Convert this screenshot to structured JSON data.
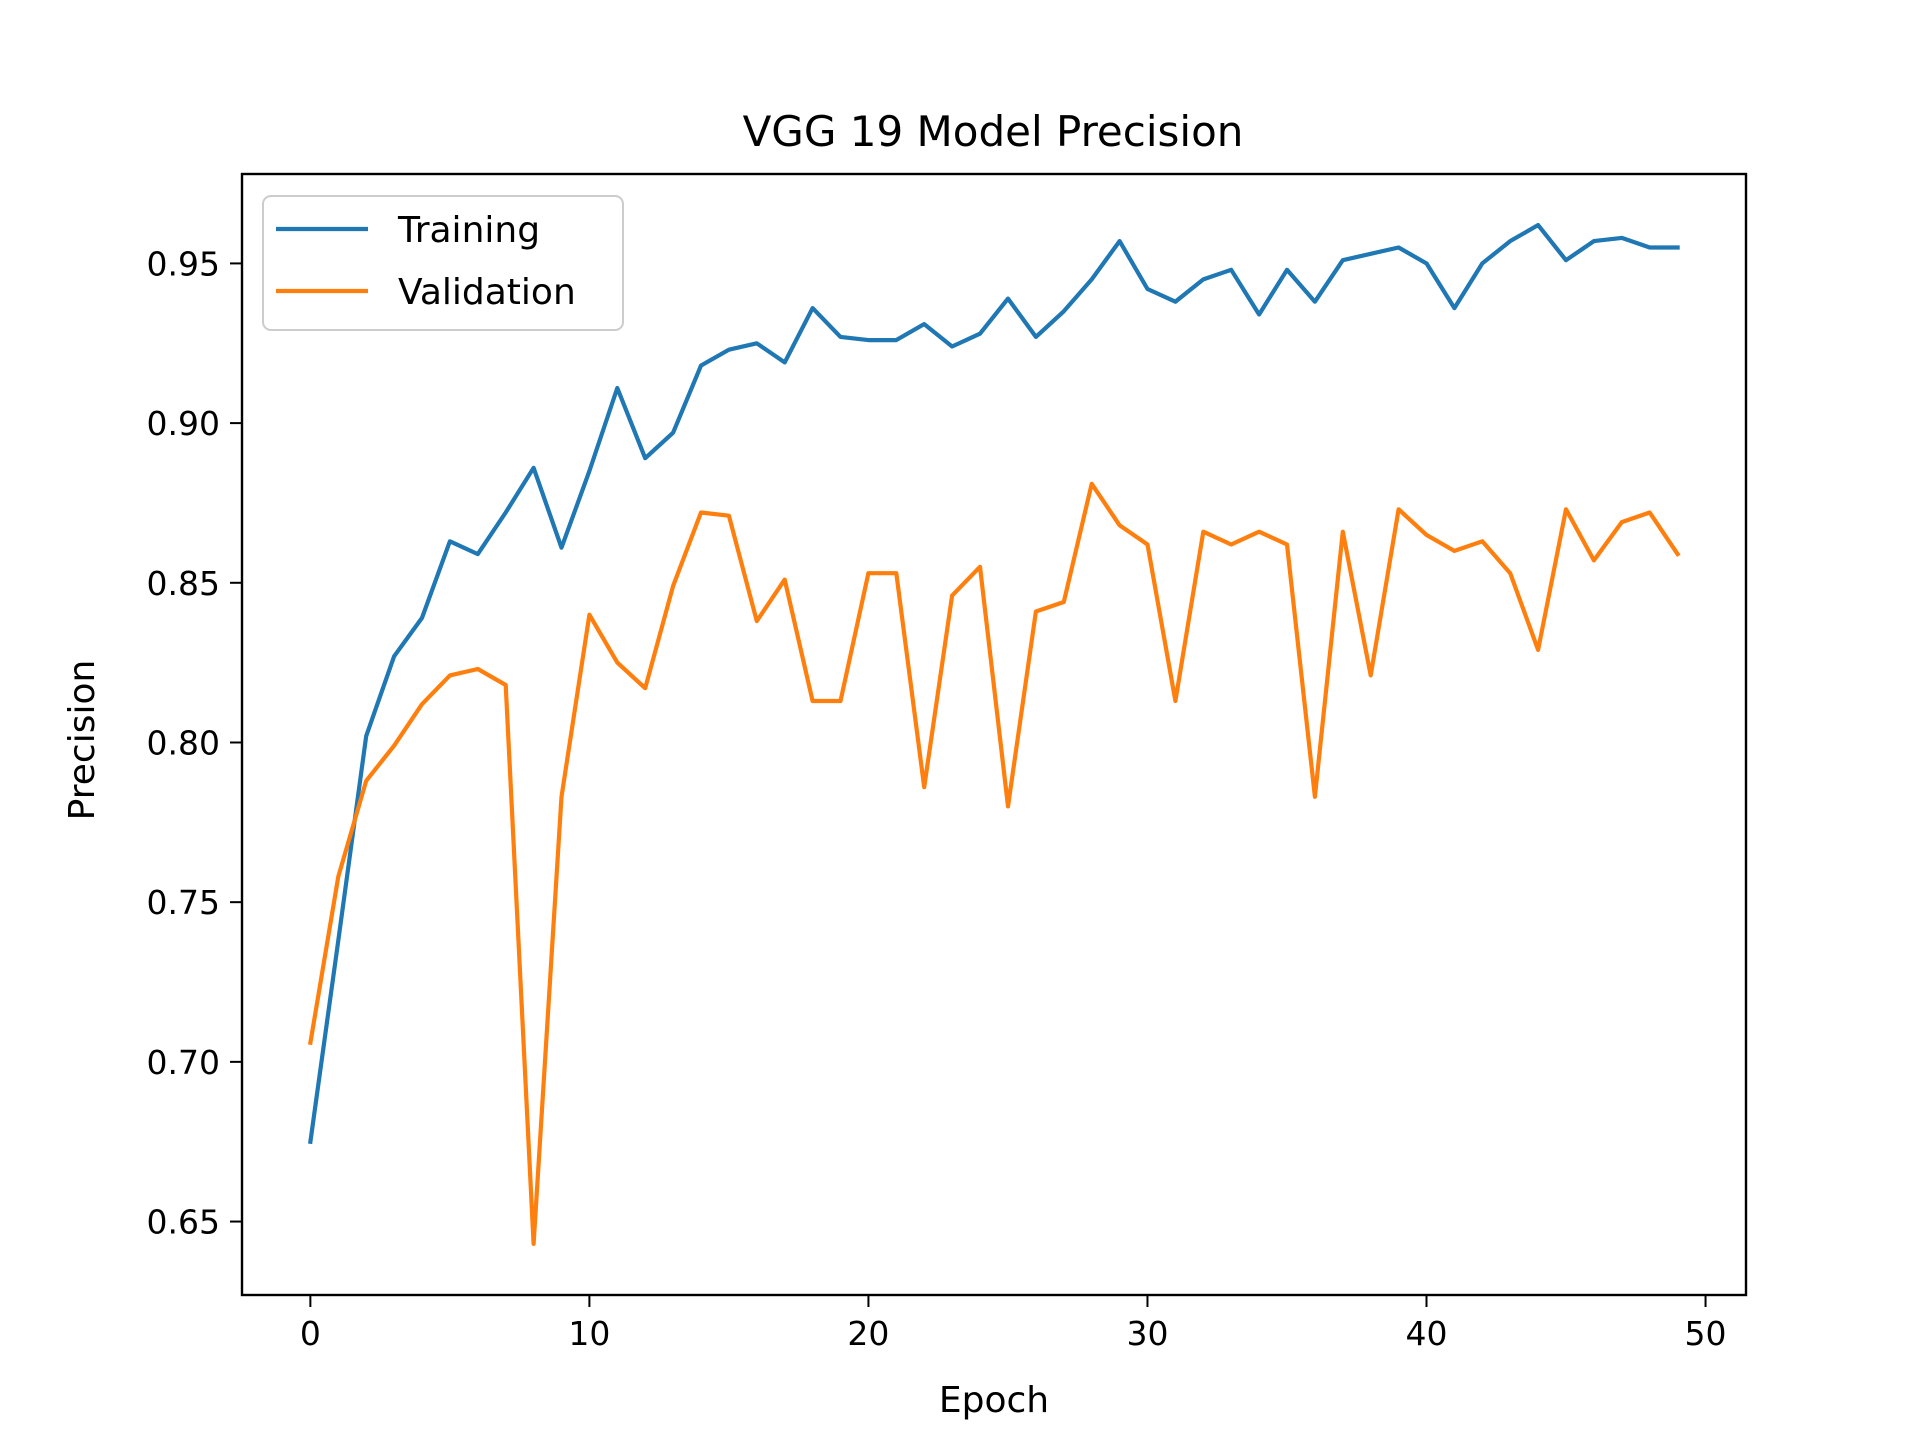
{
  "chart_data": {
    "type": "line",
    "title": "VGG 19 Model Precision",
    "xlabel": "Epoch",
    "ylabel": "Precision",
    "xlim": [
      -2.45,
      51.45
    ],
    "ylim": [
      0.627,
      0.978
    ],
    "xticks": [
      0,
      10,
      20,
      30,
      40,
      50
    ],
    "yticks": [
      0.65,
      0.7,
      0.75,
      0.8,
      0.85,
      0.9,
      0.95
    ],
    "xtick_labels": [
      "0",
      "10",
      "20",
      "30",
      "40",
      "50"
    ],
    "ytick_labels": [
      "0.65",
      "0.70",
      "0.75",
      "0.80",
      "0.85",
      "0.90",
      "0.95"
    ],
    "grid": false,
    "legend_position": "upper-left",
    "x": [
      0,
      1,
      2,
      3,
      4,
      5,
      6,
      7,
      8,
      9,
      10,
      11,
      12,
      13,
      14,
      15,
      16,
      17,
      18,
      19,
      20,
      21,
      22,
      23,
      24,
      25,
      26,
      27,
      28,
      29,
      30,
      31,
      32,
      33,
      34,
      35,
      36,
      37,
      38,
      39,
      40,
      41,
      42,
      43,
      44,
      45,
      46,
      47,
      48,
      49
    ],
    "series": [
      {
        "name": "Training",
        "color": "#1f77b4",
        "values": [
          0.675,
          0.738,
          0.802,
          0.827,
          0.839,
          0.863,
          0.859,
          0.872,
          0.886,
          0.861,
          0.885,
          0.911,
          0.889,
          0.897,
          0.918,
          0.923,
          0.925,
          0.919,
          0.936,
          0.927,
          0.926,
          0.926,
          0.931,
          0.924,
          0.928,
          0.939,
          0.927,
          0.935,
          0.945,
          0.957,
          0.942,
          0.938,
          0.945,
          0.948,
          0.934,
          0.948,
          0.938,
          0.951,
          0.953,
          0.955,
          0.95,
          0.936,
          0.95,
          0.957,
          0.962,
          0.951,
          0.957,
          0.958,
          0.955,
          0.955
        ]
      },
      {
        "name": "Validation",
        "color": "#ff7f0e",
        "values": [
          0.706,
          0.758,
          0.788,
          0.799,
          0.812,
          0.821,
          0.823,
          0.818,
          0.643,
          0.783,
          0.84,
          0.825,
          0.817,
          0.849,
          0.872,
          0.871,
          0.838,
          0.851,
          0.813,
          0.813,
          0.853,
          0.853,
          0.786,
          0.846,
          0.855,
          0.78,
          0.841,
          0.844,
          0.881,
          0.868,
          0.862,
          0.813,
          0.866,
          0.862,
          0.866,
          0.862,
          0.783,
          0.866,
          0.821,
          0.873,
          0.865,
          0.86,
          0.863,
          0.853,
          0.829,
          0.873,
          0.857,
          0.869,
          0.872,
          0.859
        ]
      }
    ]
  }
}
